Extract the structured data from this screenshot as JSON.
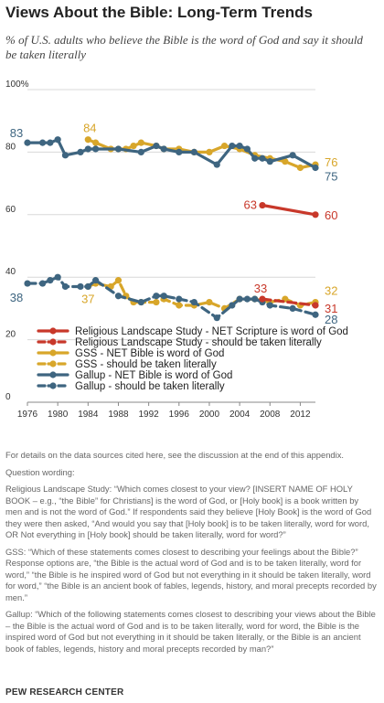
{
  "title": "Views About the Bible: Long-Term Trends",
  "subtitle": "% of U.S. adults who believe the Bible is the word of God and say it should be taken literally",
  "notes": {
    "details": "For details on the data sources cited here, see the discussion at the end of this appendix.",
    "question_heading": "Question wording:",
    "rls": "Religious Landscape Study: “Which comes closest to your view? [INSERT NAME OF HOLY BOOK – e.g., “the Bible” for Christians] is the word of God, or [Holy book] is a book written by men and is not the word of God.” If respondents said they believe [Holy Book] is the word of God they were then asked, “And would you say that [Holy book] is to be taken literally, word for word, OR Not everything in [Holy book] should be taken literally, word for word?”",
    "gss": "GSS: “Which of these statements comes closest to describing your feelings about the Bible?” Response options are, “the Bible is the actual word of God and is to be taken literally, word for word,” “the Bible is he inspired word of God but not everything in it should be taken literally, word for word,” “the Bible is an ancient book of fables, legends, history, and moral precepts recorded by men.”",
    "gallup": "Gallup: “Which of the following statements comes closest to describing your views about the Bible – the Bible is the actual word of God and is to be taken literally, word for word, the Bible is the inspired word of God but not everything in it should be taken literally, or the Bible is an ancient book of fables, legends, history and moral precepts recorded by man?”"
  },
  "source": "PEW RESEARCH CENTER",
  "colors": {
    "rls": "#c8382a",
    "gss": "#d8a62a",
    "gallup": "#3e6580"
  },
  "chart_data": {
    "type": "line",
    "xlim": [
      1976,
      2014
    ],
    "ylim": [
      0,
      100
    ],
    "x_ticks": [
      "1976",
      "1980",
      "1984",
      "1988",
      "1992",
      "1996",
      "2000",
      "2004",
      "2008",
      "2012"
    ],
    "y_ticks": [
      "0",
      "20",
      "40",
      "60",
      "80",
      "100"
    ],
    "y_unit": "%",
    "series": [
      {
        "name": "Religious Landscape Study - NET Scripture is word of God",
        "style": "solid",
        "color_key": "rls",
        "x": [
          2007,
          2014
        ],
        "values": [
          63,
          60
        ],
        "labels": [
          {
            "x": 2007,
            "text": "63"
          },
          {
            "x": 2014,
            "text": "60"
          }
        ]
      },
      {
        "name": "Religious Landscape Study - should be taken literally",
        "style": "dashed",
        "color_key": "rls",
        "x": [
          2007,
          2014
        ],
        "values": [
          33,
          31
        ],
        "labels": [
          {
            "x": 2007,
            "text": "33"
          },
          {
            "x": 2014,
            "text": "31"
          }
        ]
      },
      {
        "name": "GSS - NET Bible is word of God",
        "style": "solid",
        "color_key": "gss",
        "x": [
          1984,
          1985,
          1987,
          1988,
          1989,
          1990,
          1991,
          1993,
          1994,
          1996,
          1998,
          2000,
          2002,
          2004,
          2006,
          2008,
          2010,
          2012,
          2014
        ],
        "values": [
          84,
          83,
          81,
          81,
          81,
          82,
          83,
          82,
          81,
          81,
          80,
          80,
          82,
          81,
          79,
          78,
          77,
          75,
          76
        ],
        "labels": [
          {
            "x": 1984,
            "text": "84"
          },
          {
            "x": 2014,
            "text": "76"
          }
        ]
      },
      {
        "name": "GSS - should be taken literally",
        "style": "dashed",
        "color_key": "gss",
        "x": [
          1984,
          1985,
          1987,
          1988,
          1989,
          1990,
          1991,
          1993,
          1994,
          1996,
          1998,
          2000,
          2002,
          2004,
          2006,
          2008,
          2010,
          2012,
          2014
        ],
        "values": [
          37,
          38,
          37,
          39,
          34,
          32,
          32,
          32,
          33,
          31,
          31,
          32,
          30,
          33,
          33,
          32,
          33,
          31,
          32
        ],
        "labels": [
          {
            "x": 1984,
            "text": "37"
          },
          {
            "x": 2014,
            "text": "32"
          }
        ]
      },
      {
        "name": "Gallup - NET Bible is word of God",
        "style": "solid",
        "color_key": "gallup",
        "x": [
          1976,
          1978,
          1979,
          1980,
          1981,
          1983,
          1984,
          1985,
          1988,
          1991,
          1993,
          1994,
          1996,
          1998,
          2001,
          2003,
          2004,
          2005,
          2006,
          2007,
          2008,
          2011,
          2014
        ],
        "values": [
          83,
          83,
          83,
          84,
          79,
          80,
          81,
          81,
          81,
          80,
          82,
          81,
          80,
          80,
          76,
          82,
          82,
          81,
          78,
          78,
          77,
          79,
          75
        ],
        "labels": [
          {
            "x": 1976,
            "text": "83"
          },
          {
            "x": 2014,
            "text": "75"
          }
        ]
      },
      {
        "name": "Gallup - should be taken literally",
        "style": "dashed",
        "color_key": "gallup",
        "x": [
          1976,
          1978,
          1979,
          1980,
          1981,
          1983,
          1984,
          1985,
          1988,
          1991,
          1993,
          1994,
          1996,
          1998,
          2001,
          2003,
          2004,
          2005,
          2006,
          2007,
          2008,
          2011,
          2014
        ],
        "values": [
          38,
          38,
          39,
          40,
          37,
          37,
          37,
          39,
          34,
          32,
          34,
          34,
          33,
          32,
          27,
          31,
          33,
          33,
          33,
          32,
          31,
          30,
          28
        ],
        "labels": [
          {
            "x": 1976,
            "text": "38"
          },
          {
            "x": 2014,
            "text": "28"
          }
        ]
      }
    ]
  }
}
